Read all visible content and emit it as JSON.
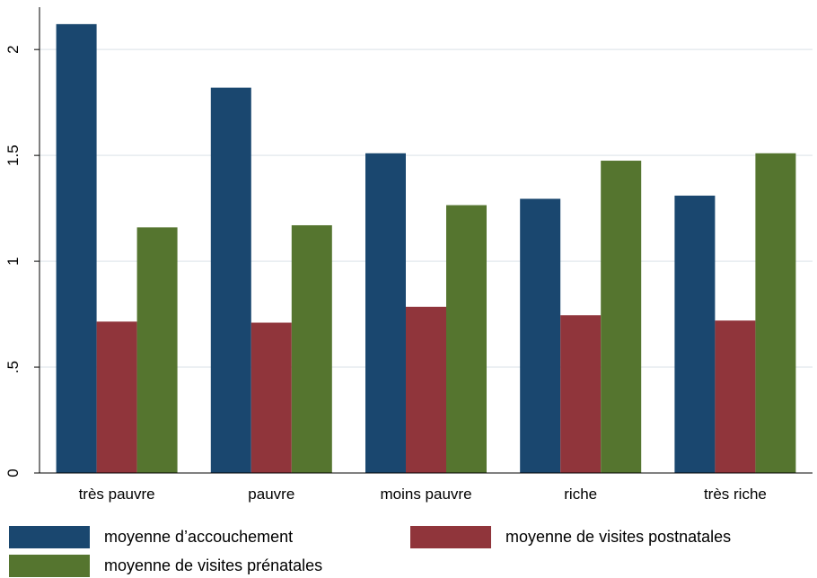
{
  "chart_data": {
    "type": "bar",
    "categories": [
      "très pauvre",
      "pauvre",
      "moins pauvre",
      "riche",
      "très riche"
    ],
    "series": [
      {
        "name": "moyenne d’accouchement",
        "color": "#1a476f",
        "values": [
          2.12,
          1.82,
          1.51,
          1.295,
          1.31
        ]
      },
      {
        "name": "moyenne de visites postnatales",
        "color": "#90353b",
        "values": [
          0.715,
          0.71,
          0.785,
          0.745,
          0.72
        ]
      },
      {
        "name": "moyenne de visites prénatales",
        "color": "#55752f",
        "values": [
          1.16,
          1.17,
          1.265,
          1.475,
          1.51
        ]
      }
    ],
    "ylim": [
      0,
      2.2
    ],
    "yticks": [
      0,
      0.5,
      1,
      1.5,
      2
    ],
    "ytick_labels": [
      "0",
      ".5",
      "1",
      "1.5",
      "2"
    ],
    "grid": true,
    "legend_position": "bottom",
    "title": "",
    "xlabel": "",
    "ylabel": ""
  }
}
